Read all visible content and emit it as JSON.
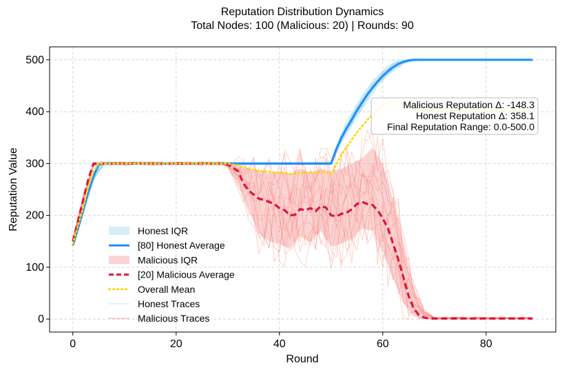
{
  "chart_data": {
    "type": "line",
    "title": "Reputation Distribution Dynamics",
    "subtitle": "Total Nodes: 100 (Malicious: 20) | Rounds: 90",
    "xlabel": "Round",
    "ylabel": "Reputation Value",
    "xlim": [
      -4.5,
      93.5
    ],
    "ylim": [
      -25,
      525
    ],
    "xticks": [
      0,
      20,
      40,
      60,
      80
    ],
    "yticks": [
      0,
      100,
      200,
      300,
      400,
      500
    ],
    "grid": true,
    "legend_position": "lower-left",
    "annotations": [
      "Malicious Reputation Δ: -148.3",
      "Honest Reputation Δ: 358.1",
      "Final Reputation Range: 0.0-500.0"
    ],
    "legend": [
      {
        "label": "Honest IQR",
        "kind": "patch",
        "color": "#87CEEB"
      },
      {
        "label": "[80] Honest Average",
        "kind": "line",
        "color": "#1E90FF"
      },
      {
        "label": "Malicious IQR",
        "kind": "patch",
        "color": "#F08080"
      },
      {
        "label": "[20] Malicious Average",
        "kind": "dashed",
        "color": "#DC143C"
      },
      {
        "label": "Overall Mean",
        "kind": "dotted",
        "color": "#FFD700"
      },
      {
        "label": "Honest Traces",
        "kind": "thin",
        "color": "#ADD8E6"
      },
      {
        "label": "Malicious Traces",
        "kind": "thin",
        "color": "#FA8072"
      }
    ],
    "series": [
      {
        "name": "[80] Honest Average",
        "color": "#1E90FF",
        "x": [
          0,
          1,
          2,
          3,
          4,
          5,
          6,
          10,
          20,
          30,
          40,
          45,
          48,
          49,
          50,
          51,
          52,
          53,
          54,
          55,
          56,
          57,
          58,
          59,
          60,
          61,
          62,
          63,
          64,
          65,
          66,
          67,
          68,
          70,
          75,
          80,
          85,
          89
        ],
        "y": [
          142,
          175,
          210,
          245,
          275,
          298,
          300,
          300,
          300,
          300,
          300,
          300,
          300,
          300,
          300,
          328,
          350,
          368,
          385,
          402,
          418,
          433,
          446,
          458,
          469,
          478,
          486,
          492,
          496,
          499,
          500,
          500,
          500,
          500,
          500,
          500,
          500,
          500
        ]
      },
      {
        "name": "[20] Malicious Average",
        "color": "#DC143C",
        "x": [
          0,
          1,
          2,
          3,
          4,
          5,
          6,
          10,
          20,
          29,
          30,
          31,
          32,
          33,
          34,
          35,
          36,
          37,
          38,
          39,
          40,
          41,
          42,
          43,
          44,
          45,
          46,
          47,
          48,
          49,
          50,
          51,
          52,
          53,
          54,
          55,
          56,
          57,
          58,
          59,
          60,
          61,
          62,
          63,
          64,
          65,
          66,
          67,
          68,
          69,
          70,
          72,
          75,
          80,
          85,
          89
        ],
        "y": [
          150,
          190,
          230,
          270,
          300,
          300,
          300,
          300,
          300,
          300,
          298,
          292,
          285,
          262,
          248,
          240,
          232,
          230,
          226,
          222,
          214,
          210,
          200,
          201,
          212,
          210,
          214,
          208,
          218,
          215,
          200,
          198,
          203,
          205,
          212,
          222,
          226,
          222,
          220,
          210,
          194,
          175,
          145,
          115,
          80,
          45,
          20,
          8,
          3,
          1,
          1,
          1,
          1,
          1,
          1,
          1
        ]
      },
      {
        "name": "Overall Mean",
        "color": "#FFD700",
        "x": [
          0,
          1,
          2,
          3,
          4,
          5,
          6,
          10,
          20,
          29,
          30,
          31,
          32,
          33,
          34,
          35,
          36,
          37,
          38,
          39,
          40,
          41,
          42,
          43,
          44,
          45,
          46,
          47,
          48,
          49,
          50,
          51,
          52,
          53,
          54,
          55,
          56,
          57,
          58,
          59,
          60,
          61,
          62,
          63,
          64,
          65,
          66,
          67,
          68,
          69,
          70,
          75,
          80,
          85,
          89
        ],
        "y": [
          145,
          180,
          215,
          255,
          285,
          300,
          300,
          300,
          300,
          300,
          300,
          298,
          297,
          293,
          290,
          288,
          286,
          285,
          284,
          283,
          283,
          282,
          280,
          280,
          282,
          282,
          283,
          282,
          284,
          283,
          280,
          298,
          318,
          332,
          346,
          360,
          372,
          384,
          394,
          404,
          412,
          418,
          420,
          418,
          414,
          410,
          406,
          404,
          402,
          401,
          400,
          400,
          400,
          400,
          400
        ]
      }
    ],
    "bands": [
      {
        "name": "Honest IQR",
        "color": "#87CEEB",
        "x": [
          0,
          2,
          4,
          6,
          10,
          30,
          48,
          50,
          52,
          54,
          56,
          58,
          60,
          62,
          64,
          66,
          68,
          89
        ],
        "low": [
          138,
          202,
          268,
          296,
          298,
          298,
          298,
          298,
          340,
          372,
          405,
          435,
          460,
          478,
          492,
          498,
          499,
          499
        ],
        "high": [
          146,
          218,
          282,
          301,
          301,
          301,
          301,
          302,
          360,
          398,
          430,
          458,
          480,
          495,
          500,
          501,
          501,
          501
        ]
      },
      {
        "name": "Malicious IQR",
        "color": "#F08080",
        "x": [
          0,
          2,
          4,
          6,
          29,
          30,
          32,
          34,
          36,
          38,
          40,
          42,
          44,
          46,
          48,
          50,
          52,
          54,
          56,
          58,
          60,
          62,
          64,
          66,
          68,
          70,
          89
        ],
        "low": [
          145,
          225,
          295,
          298,
          298,
          292,
          258,
          210,
          165,
          150,
          145,
          135,
          160,
          148,
          170,
          140,
          145,
          155,
          175,
          170,
          130,
          80,
          30,
          5,
          1,
          0,
          0
        ],
        "high": [
          155,
          235,
          302,
          302,
          302,
          300,
          298,
          290,
          285,
          282,
          285,
          280,
          290,
          282,
          290,
          285,
          290,
          300,
          310,
          330,
          300,
          230,
          150,
          60,
          15,
          3,
          3
        ]
      }
    ]
  }
}
